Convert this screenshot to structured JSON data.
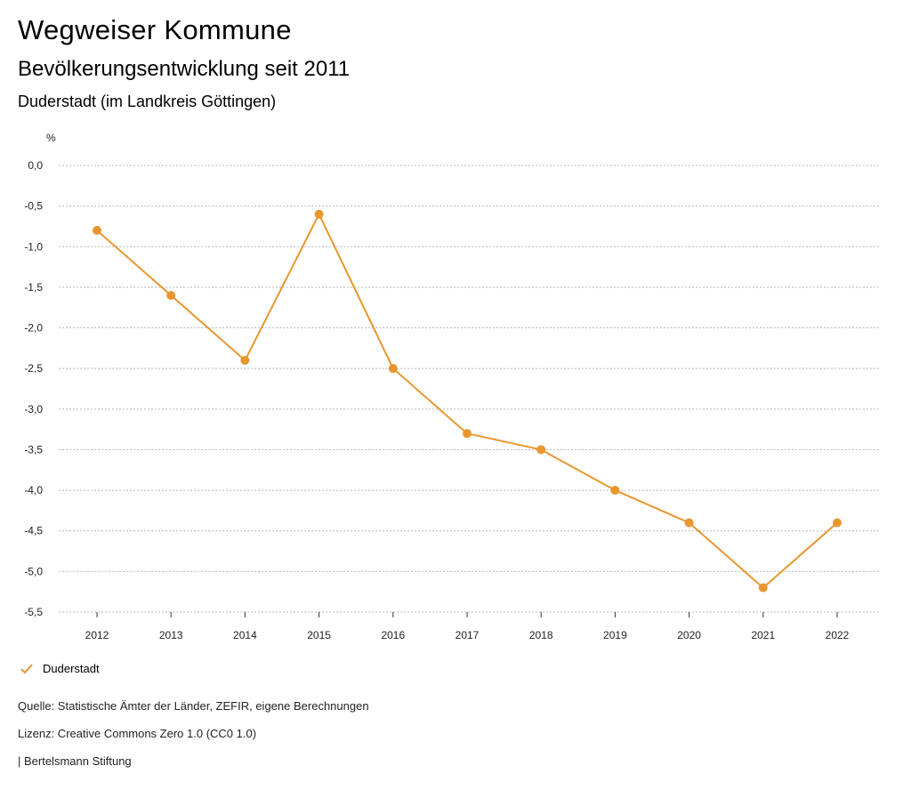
{
  "header": {
    "title": "Wegweiser Kommune",
    "subtitle": "Bevölkerungsentwicklung seit 2011",
    "region": "Duderstadt (im Landkreis Göttingen)"
  },
  "chart_data": {
    "type": "line",
    "y_unit_label": "%",
    "ylim": [
      -5.5,
      0.0
    ],
    "y_ticks": [
      0.0,
      -0.5,
      -1.0,
      -1.5,
      -2.0,
      -2.5,
      -3.0,
      -3.5,
      -4.0,
      -4.5,
      -5.0,
      -5.5
    ],
    "y_tick_labels": [
      "0,0",
      "-0,5",
      "-1,0",
      "-1,5",
      "-2,0",
      "-2,5",
      "-3,0",
      "-3,5",
      "-4,0",
      "-4,5",
      "-5,0",
      "-5,5"
    ],
    "categories": [
      "2012",
      "2013",
      "2014",
      "2015",
      "2016",
      "2017",
      "2018",
      "2019",
      "2020",
      "2021",
      "2022"
    ],
    "series": [
      {
        "name": "Duderstadt",
        "color": "#e8972f",
        "values": [
          -0.8,
          -1.6,
          -2.4,
          -0.6,
          -2.5,
          -3.3,
          -3.5,
          -4.0,
          -4.4,
          -5.2,
          -4.4
        ]
      }
    ],
    "grid": true,
    "legend_position": "bottom-left"
  },
  "legend": {
    "label": "Duderstadt"
  },
  "footer": {
    "source": "Quelle: Statistische Ämter der Länder, ZEFIR, eigene Berechnungen",
    "license": "Lizenz: Creative Commons Zero 1.0 (CC0 1.0)",
    "publisher": "| Bertelsmann Stiftung"
  }
}
